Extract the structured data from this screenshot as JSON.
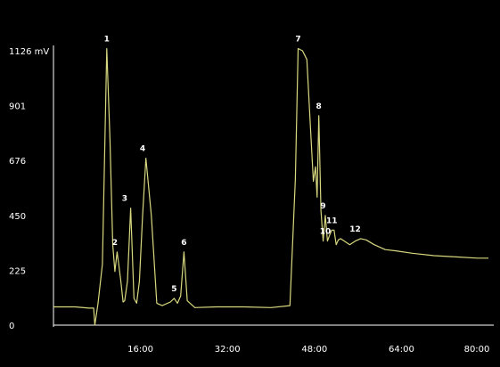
{
  "chart_data": {
    "type": "line",
    "title": "",
    "xlabel": "",
    "ylabel": "",
    "y_unit": "mV",
    "xlim": [
      0,
      80
    ],
    "ylim": [
      0,
      1126
    ],
    "grid": false,
    "x_ticks": [
      {
        "value": 16,
        "label": "16:00"
      },
      {
        "value": 32,
        "label": "32:00"
      },
      {
        "value": 48,
        "label": "48:00"
      },
      {
        "value": 64,
        "label": "64:00"
      },
      {
        "value": 80,
        "label": "80:00"
      }
    ],
    "y_ticks": [
      {
        "value": 0,
        "label": "0"
      },
      {
        "value": 225,
        "label": "225"
      },
      {
        "value": 450,
        "label": "450"
      },
      {
        "value": 676,
        "label": "676"
      },
      {
        "value": 901,
        "label": "901"
      },
      {
        "value": 1126,
        "label": "1126 mV"
      }
    ],
    "series": [
      {
        "color": "#d8d880",
        "x": [
          0,
          4,
          6.5,
          7.4,
          7.6,
          8.2,
          9.0,
          9.8,
          10.4,
          10.9,
          11.3,
          11.7,
          12.0,
          12.4,
          12.8,
          13.1,
          13.6,
          14.2,
          14.8,
          15.3,
          15.8,
          16.4,
          17.0,
          18.0,
          19.0,
          20.0,
          21.5,
          22.2,
          22.8,
          23.4,
          24.0,
          24.6,
          26.0,
          30.0,
          35.0,
          40.0,
          43.5,
          44.5,
          45.0,
          45.8,
          46.6,
          47.3,
          47.8,
          48.2,
          48.5,
          48.8,
          49.2,
          49.6,
          50.0,
          50.4,
          50.8,
          51.2,
          51.6,
          52.0,
          52.4,
          52.8,
          53.5,
          54.5,
          55.5,
          56.5,
          57.5,
          59.0,
          61.0,
          63.0,
          66.0,
          70.0,
          74.0,
          78.0,
          80.0
        ],
        "y": [
          75,
          75,
          70,
          70,
          0,
          90,
          250,
          1135,
          760,
          330,
          220,
          300,
          250,
          180,
          95,
          100,
          180,
          480,
          110,
          90,
          180,
          450,
          685,
          450,
          90,
          80,
          95,
          110,
          90,
          120,
          300,
          100,
          72,
          75,
          75,
          72,
          80,
          600,
          1135,
          1126,
          1090,
          800,
          590,
          650,
          525,
          860,
          470,
          345,
          450,
          345,
          370,
          390,
          390,
          330,
          350,
          355,
          345,
          330,
          345,
          355,
          350,
          330,
          310,
          305,
          295,
          285,
          280,
          275,
          275
        ]
      }
    ],
    "annotations": [
      {
        "label": "1",
        "x": 9.8,
        "y": 1135
      },
      {
        "label": "2",
        "x": 11.3,
        "y": 300
      },
      {
        "label": "3",
        "x": 13.1,
        "y": 480
      },
      {
        "label": "4",
        "x": 16.4,
        "y": 685
      },
      {
        "label": "5",
        "x": 22.2,
        "y": 110
      },
      {
        "label": "6",
        "x": 24.0,
        "y": 300
      },
      {
        "label": "7",
        "x": 45.0,
        "y": 1135
      },
      {
        "label": "8",
        "x": 48.8,
        "y": 860
      },
      {
        "label": "9",
        "x": 49.6,
        "y": 450
      },
      {
        "label": "10",
        "x": 50.0,
        "y": 345
      },
      {
        "label": "11",
        "x": 51.2,
        "y": 390
      },
      {
        "label": "12",
        "x": 55.5,
        "y": 355
      }
    ],
    "background": "#000000",
    "axis_color": "#ffffff"
  }
}
